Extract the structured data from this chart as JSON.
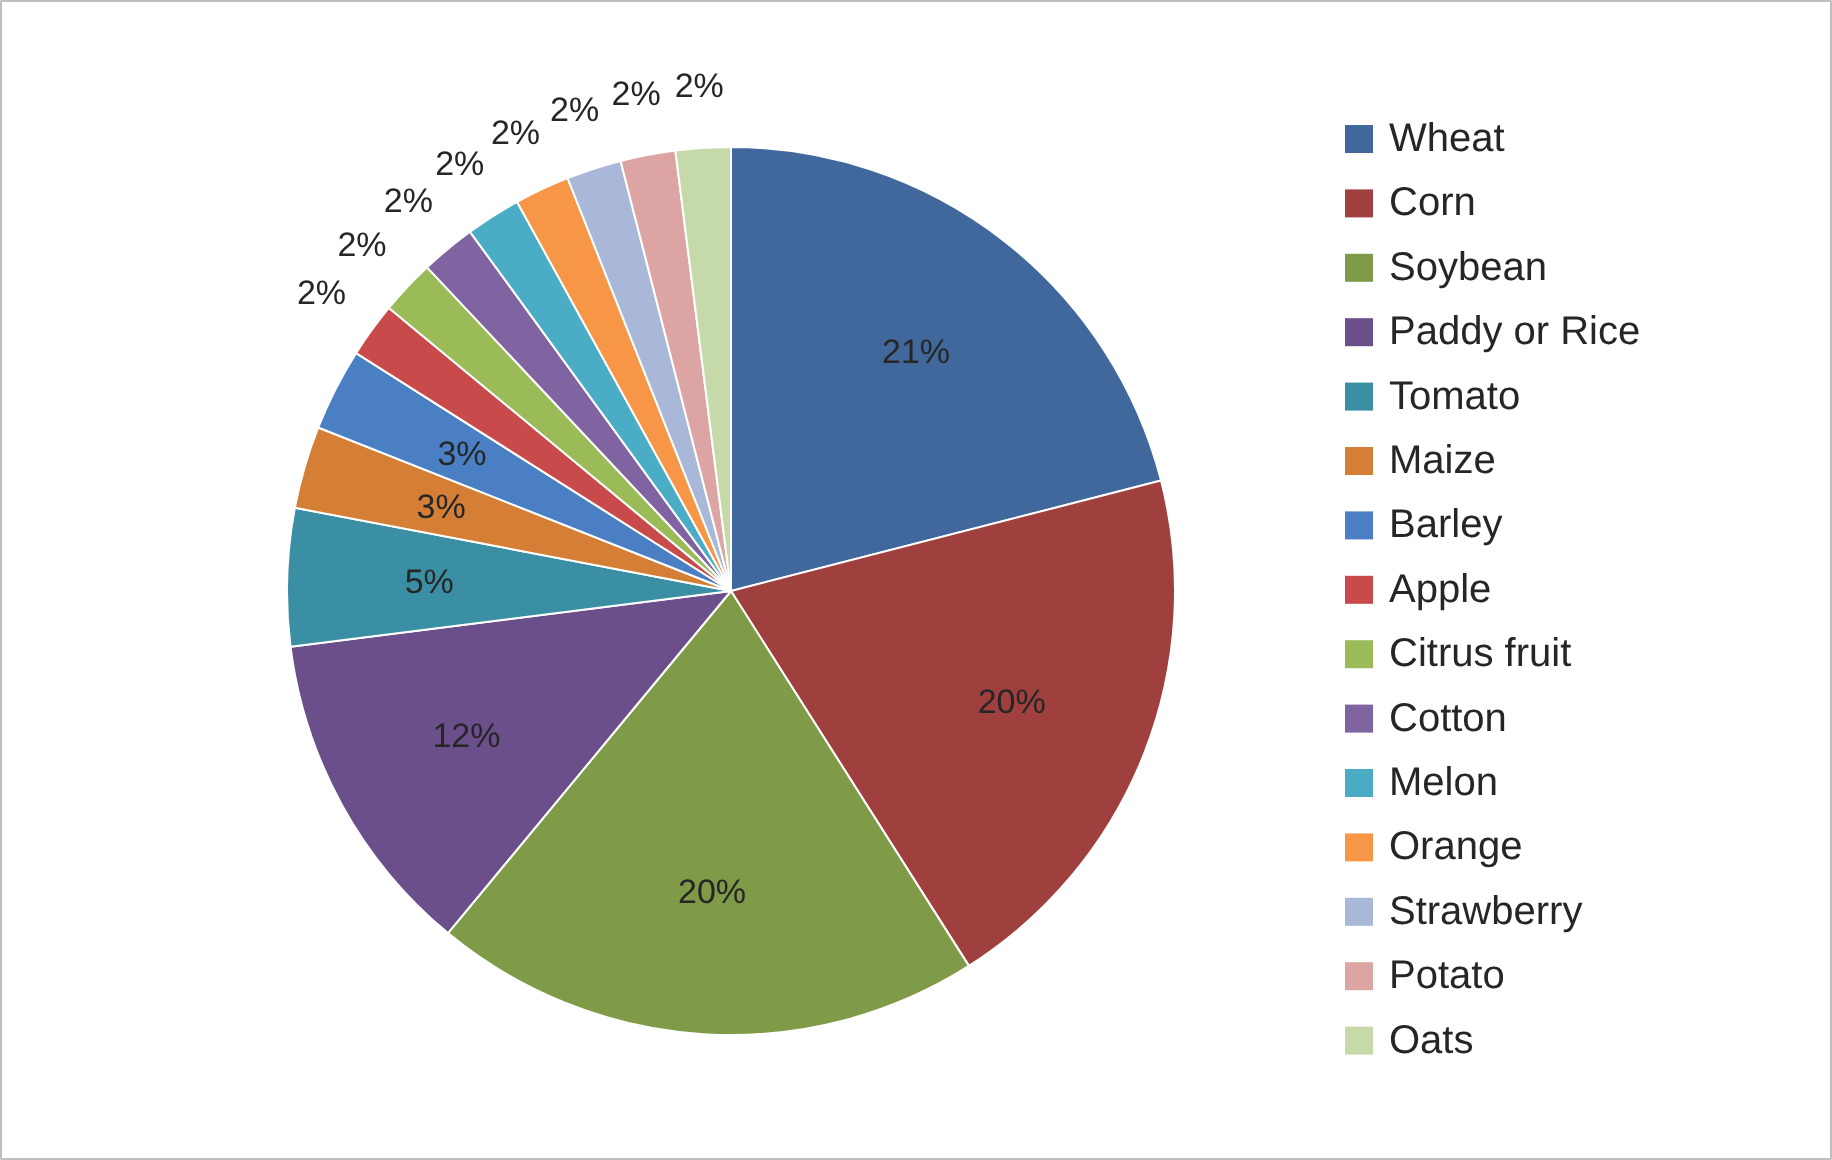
{
  "chart_data": {
    "type": "pie",
    "categories": [
      "Wheat",
      "Corn",
      "Soybean",
      "Paddy or Rice",
      "Tomato",
      "Maize",
      "Barley",
      "Apple",
      "Citrus fruit",
      "Cotton",
      "Melon",
      "Orange",
      "Strawberry",
      "Potato",
      "Oats"
    ],
    "values": [
      21,
      20,
      20,
      12,
      5,
      3,
      3,
      2,
      2,
      2,
      2,
      2,
      2,
      2,
      2
    ],
    "value_labels": [
      "21%",
      "20%",
      "20%",
      "12%",
      "5%",
      "3%",
      "3%",
      "2%",
      "2%",
      "2%",
      "2%",
      "2%",
      "2%",
      "2%",
      "2%"
    ],
    "colors": [
      "#41689c",
      "#a0403e",
      "#7f9b48",
      "#6a4f8a",
      "#3b8fa4",
      "#d47f35",
      "#4a7fc4",
      "#c84a4a",
      "#9bbb59",
      "#8064a2",
      "#4bacc6",
      "#f79646",
      "#a9b8d9",
      "#dca5a4",
      "#c5d9a9"
    ],
    "legend": "right"
  }
}
